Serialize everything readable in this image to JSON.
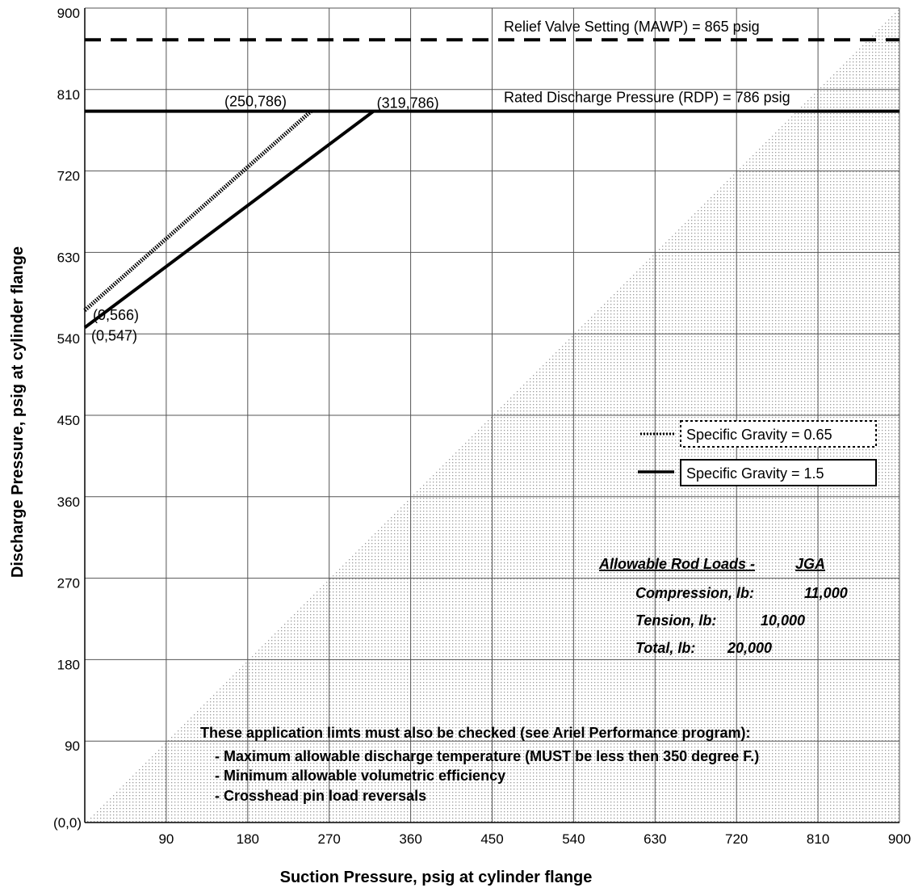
{
  "chart_data": {
    "type": "line",
    "xlabel": "Suction Pressure, psig at cylinder flange",
    "ylabel": "Discharge Pressure, psig at cylinder flange",
    "xlim": [
      0,
      900
    ],
    "ylim": [
      0,
      900
    ],
    "x_ticks": [
      "90",
      "180",
      "270",
      "360",
      "450",
      "540",
      "630",
      "720",
      "810",
      "900"
    ],
    "y_ticks": [
      "90",
      "180",
      "270",
      "360",
      "450",
      "540",
      "630",
      "720",
      "810",
      "900"
    ],
    "origin_label": "(0,0)",
    "grid": true,
    "shaded_region": "area below the line y = x (suction pressure exceeds discharge pressure)",
    "reference_lines": [
      {
        "label": "Relief Valve Setting (MAWP) = 865 psig",
        "y": 865,
        "style": "dashed"
      },
      {
        "label": "Rated Discharge Pressure (RDP) = 786 psig",
        "y": 786,
        "style": "solid"
      }
    ],
    "series": [
      {
        "name": "Specific Gravity = 0.65",
        "style": "dotted",
        "x": [
          0,
          250
        ],
        "y": [
          566,
          786
        ]
      },
      {
        "name": "Specific Gravity = 1.5",
        "style": "solid",
        "x": [
          0,
          319
        ],
        "y": [
          547,
          786
        ]
      }
    ],
    "point_labels": [
      {
        "text": "(250,786)",
        "x": 250,
        "y": 786
      },
      {
        "text": "(319,786)",
        "x": 319,
        "y": 786
      },
      {
        "text": "(0,566)",
        "x": 0,
        "y": 566
      },
      {
        "text": "(0,547)",
        "x": 0,
        "y": 547
      }
    ],
    "rod_loads": {
      "title": "Allowable Rod Loads -",
      "model": "JGA",
      "rows": [
        {
          "label": "Compression, lb:",
          "value": "11,000"
        },
        {
          "label": "Tension, lb:",
          "value": "10,000"
        },
        {
          "label": "Total, lb:",
          "value": "20,000"
        }
      ]
    },
    "notes": [
      "These application limts must also be checked (see Ariel Performance program):",
      "- Maximum allowable discharge temperature (MUST be less then 350 degree F.)",
      "- Minimum allowable volumetric efficiency",
      "- Crosshead pin load reversals"
    ]
  }
}
